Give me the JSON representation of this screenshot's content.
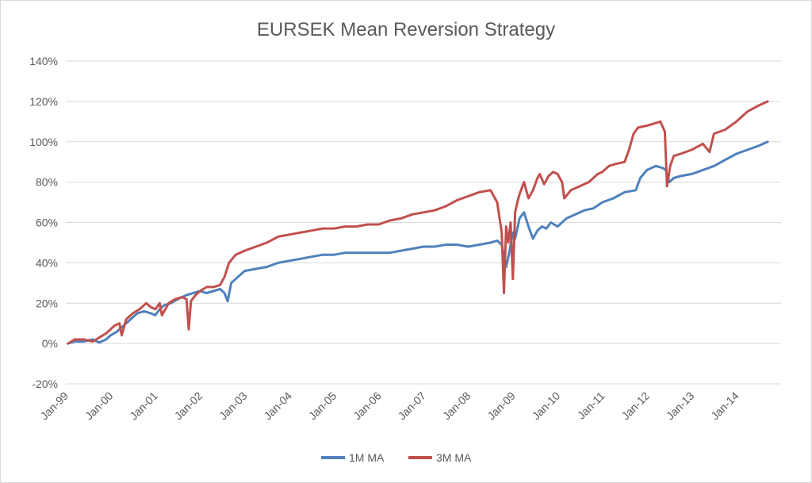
{
  "chart_data": {
    "type": "line",
    "title": "EURSEK Mean Reversion Strategy",
    "xlabel": "",
    "ylabel": "",
    "ylim": [
      -20,
      140
    ],
    "y_ticks": [
      -20,
      0,
      20,
      40,
      60,
      80,
      100,
      120,
      140
    ],
    "y_tick_labels": [
      "-20%",
      "0%",
      "20%",
      "40%",
      "60%",
      "80%",
      "100%",
      "120%",
      "140%"
    ],
    "x_range": [
      1999.0,
      2015.0
    ],
    "x_ticks": [
      1999,
      2000,
      2001,
      2002,
      2003,
      2004,
      2005,
      2006,
      2007,
      2008,
      2009,
      2010,
      2011,
      2012,
      2013,
      2014
    ],
    "x_tick_labels": [
      "Jan-99",
      "Jan-00",
      "Jan-01",
      "Jan-02",
      "Jan-03",
      "Jan-04",
      "Jan-05",
      "Jan-06",
      "Jan-07",
      "Jan-08",
      "Jan-09",
      "Jan-10",
      "Jan-11",
      "Jan-12",
      "Jan-13",
      "Jan-14"
    ],
    "grid": true,
    "legend_position": "bottom-center",
    "series": [
      {
        "name": "1M MA",
        "color": "#4f81bd",
        "x": [
          1999.05,
          1999.2,
          1999.4,
          1999.6,
          1999.75,
          1999.9,
          2000.0,
          2000.15,
          2000.3,
          2000.45,
          2000.6,
          2000.75,
          2000.9,
          2001.0,
          2001.1,
          2001.2,
          2001.35,
          2001.5,
          2001.6,
          2001.7,
          2001.85,
          2002.0,
          2002.15,
          2002.3,
          2002.45,
          2002.55,
          2002.62,
          2002.7,
          2002.85,
          2003.0,
          2003.25,
          2003.5,
          2003.75,
          2004.0,
          2004.25,
          2004.5,
          2004.75,
          2005.0,
          2005.25,
          2005.5,
          2005.75,
          2006.0,
          2006.25,
          2006.5,
          2006.75,
          2007.0,
          2007.25,
          2007.5,
          2007.75,
          2008.0,
          2008.25,
          2008.5,
          2008.65,
          2008.75,
          2008.85,
          2008.92,
          2009.0,
          2009.05,
          2009.15,
          2009.25,
          2009.35,
          2009.45,
          2009.55,
          2009.65,
          2009.75,
          2009.85,
          2010.0,
          2010.2,
          2010.4,
          2010.6,
          2010.8,
          2011.0,
          2011.25,
          2011.5,
          2011.75,
          2011.85,
          2012.0,
          2012.2,
          2012.35,
          2012.42,
          2012.5,
          2012.6,
          2012.75,
          2013.0,
          2013.25,
          2013.5,
          2013.75,
          2014.0,
          2014.25,
          2014.5,
          2014.7
        ],
        "values": [
          0,
          1,
          1,
          2,
          0.5,
          2,
          4,
          6,
          9,
          12,
          15,
          16,
          15,
          14,
          17,
          19,
          20,
          22,
          23,
          24,
          25,
          26,
          25,
          26,
          27,
          25,
          21,
          30,
          33,
          36,
          37,
          38,
          40,
          41,
          42,
          43,
          44,
          44,
          45,
          45,
          45,
          45,
          45,
          46,
          47,
          48,
          48,
          49,
          49,
          48,
          49,
          50,
          51,
          49,
          38,
          45,
          55,
          52,
          62,
          65,
          58,
          52,
          56,
          58,
          57,
          60,
          58,
          62,
          64,
          66,
          67,
          70,
          72,
          75,
          76,
          82,
          86,
          88,
          87,
          86,
          80,
          82,
          83,
          84,
          86,
          88,
          91,
          94,
          96,
          98,
          100
        ]
      },
      {
        "name": "3M MA",
        "color": "#c0504d",
        "x": [
          1999.05,
          1999.2,
          1999.4,
          1999.6,
          1999.75,
          1999.9,
          2000.0,
          2000.1,
          2000.2,
          2000.25,
          2000.35,
          2000.5,
          2000.65,
          2000.8,
          2000.9,
          2001.0,
          2001.1,
          2001.15,
          2001.3,
          2001.45,
          2001.6,
          2001.7,
          2001.75,
          2001.8,
          2001.9,
          2002.0,
          2002.15,
          2002.3,
          2002.45,
          2002.55,
          2002.65,
          2002.8,
          2003.0,
          2003.25,
          2003.5,
          2003.75,
          2004.0,
          2004.25,
          2004.5,
          2004.75,
          2005.0,
          2005.25,
          2005.5,
          2005.75,
          2006.0,
          2006.25,
          2006.5,
          2006.75,
          2007.0,
          2007.25,
          2007.5,
          2007.75,
          2008.0,
          2008.25,
          2008.5,
          2008.65,
          2008.75,
          2008.8,
          2008.85,
          2008.9,
          2008.95,
          2009.0,
          2009.05,
          2009.1,
          2009.15,
          2009.25,
          2009.35,
          2009.45,
          2009.55,
          2009.6,
          2009.7,
          2009.8,
          2009.9,
          2010.0,
          2010.1,
          2010.15,
          2010.3,
          2010.5,
          2010.7,
          2010.9,
          2011.0,
          2011.15,
          2011.3,
          2011.5,
          2011.6,
          2011.7,
          2011.8,
          2012.0,
          2012.15,
          2012.3,
          2012.4,
          2012.45,
          2012.52,
          2012.6,
          2012.75,
          2013.0,
          2013.25,
          2013.4,
          2013.5,
          2013.75,
          2014.0,
          2014.25,
          2014.5,
          2014.7
        ],
        "values": [
          0,
          2,
          2,
          1,
          3,
          5,
          7,
          9,
          10,
          4,
          12,
          15,
          17,
          20,
          18,
          17,
          20,
          14,
          20,
          22,
          23,
          22,
          7,
          21,
          24,
          26,
          28,
          28,
          29,
          33,
          40,
          44,
          46,
          48,
          50,
          53,
          54,
          55,
          56,
          57,
          57,
          58,
          58,
          59,
          59,
          61,
          62,
          64,
          65,
          66,
          68,
          71,
          73,
          75,
          76,
          70,
          55,
          25,
          58,
          50,
          60,
          32,
          65,
          70,
          74,
          80,
          72,
          76,
          82,
          84,
          79,
          83,
          85,
          84,
          80,
          72,
          76,
          78,
          80,
          84,
          85,
          88,
          89,
          90,
          96,
          104,
          107,
          108,
          109,
          110,
          105,
          78,
          88,
          93,
          94,
          96,
          99,
          95,
          104,
          106,
          110,
          115,
          118,
          120
        ]
      }
    ]
  }
}
